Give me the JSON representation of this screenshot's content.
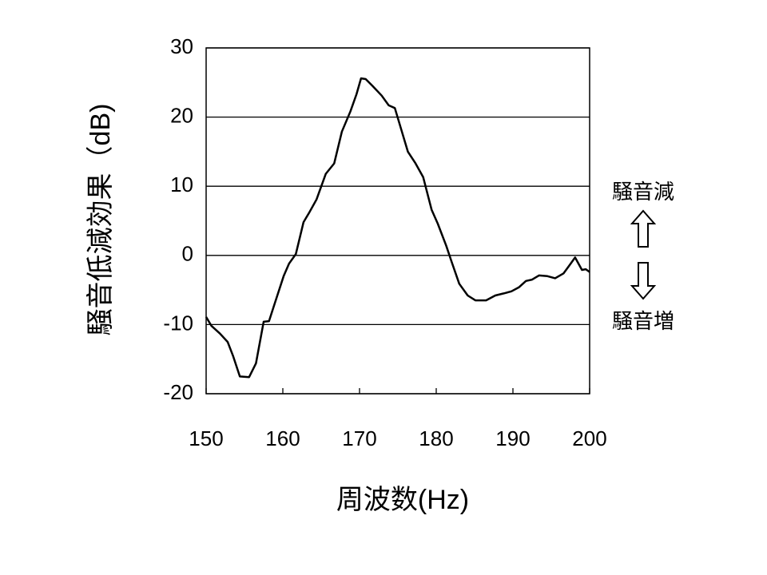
{
  "chart_data": {
    "type": "line",
    "x_label": "周波数(Hz)",
    "y_label": "騒音低減効果（dB)",
    "annotations": [
      "騒音減",
      "騒音増"
    ],
    "x": [
      150,
      150.7,
      151.8,
      152.8,
      153.5,
      154.4,
      155.6,
      156.5,
      157.5,
      158.2,
      159.1,
      160.1,
      160.8,
      161.7,
      162.7,
      163.5,
      164.4,
      165.6,
      166.7,
      167.7,
      168.8,
      169.6,
      170.2,
      170.8,
      171.7,
      172.9,
      173.8,
      174.6,
      176.3,
      177.3,
      178.3,
      179.4,
      180.2,
      181.3,
      182.0,
      183.0,
      184.1,
      185.1,
      186.5,
      187.7,
      188.8,
      189.8,
      190.8,
      191.7,
      192.5,
      193.4,
      194.5,
      195.5,
      196.6,
      197.4,
      198.1,
      199.0,
      199.5,
      200
    ],
    "series": [
      {
        "color": "#000000",
        "values": [
          -8.9,
          -10.2,
          -11.3,
          -12.5,
          -14.5,
          -17.5,
          -17.6,
          -15.6,
          -9.6,
          -9.5,
          -6.4,
          -3.0,
          -1.2,
          0.2,
          4.8,
          6.3,
          8.1,
          11.8,
          13.3,
          17.9,
          20.8,
          23.3,
          25.6,
          25.5,
          24.5,
          23.1,
          21.7,
          21.3,
          15.0,
          13.3,
          11.3,
          6.6,
          4.6,
          1.4,
          -0.9,
          -4.1,
          -5.8,
          -6.5,
          -6.5,
          -5.8,
          -5.5,
          -5.2,
          -4.6,
          -3.7,
          -3.5,
          -2.9,
          -3.0,
          -3.3,
          -2.6,
          -1.4,
          -0.3,
          -2.1,
          -2.0,
          -2.4
        ]
      }
    ],
    "xlim": [
      150,
      200
    ],
    "xticks": [
      150,
      160,
      170,
      180,
      190,
      200
    ],
    "ylim": [
      -20,
      30
    ],
    "yticks": [
      -20,
      -10,
      0,
      10,
      20,
      30
    ],
    "grid": true
  }
}
